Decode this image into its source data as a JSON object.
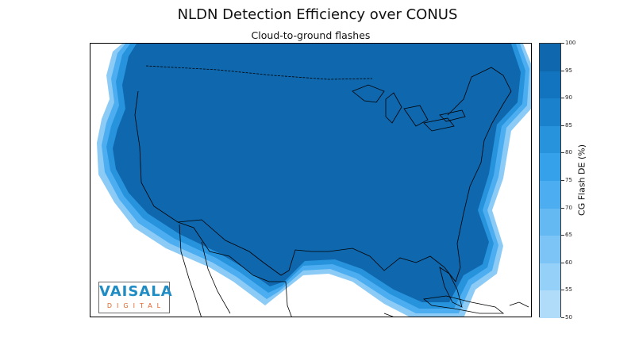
{
  "title": "NLDN Detection Efficiency over CONUS",
  "subtitle": "Cloud-to-ground flashes",
  "colorbar": {
    "label": "CG Flash DE (%)",
    "ticks": [
      "100",
      "95",
      "90",
      "85",
      "80",
      "75",
      "70",
      "65",
      "60",
      "55",
      "50"
    ],
    "colors": [
      "#0f67ad",
      "#1274be",
      "#1a82cc",
      "#2793dd",
      "#35a1ea",
      "#4caef0",
      "#64b9f3",
      "#7cc4f5",
      "#95d0f8",
      "#b0dcfa"
    ]
  },
  "logo": {
    "main": "VAISALA",
    "sub": "DIGITAL"
  },
  "colors": {
    "land_core": "#0f67ad",
    "border_line": "#000000",
    "logo_blue": "#1f8cc4",
    "logo_orange": "#e2652a"
  }
}
